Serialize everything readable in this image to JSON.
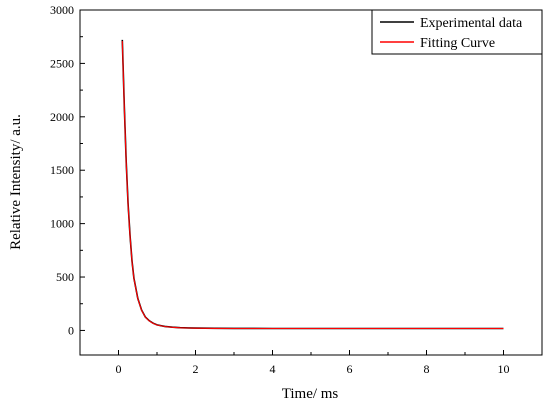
{
  "chart_data": {
    "type": "line",
    "xlabel": "Time/ ms",
    "ylabel": "Relative Intensity/ a.u.",
    "xlim": [
      -1,
      11
    ],
    "ylim": [
      -230,
      3000
    ],
    "x_ticks": [
      0,
      2,
      4,
      6,
      8,
      10
    ],
    "y_ticks": [
      0,
      500,
      1000,
      1500,
      2000,
      2500,
      3000
    ],
    "grid": false,
    "legend_position": "top-right",
    "series": [
      {
        "name": "Experimental data",
        "color": "#000000",
        "x": [
          0.1,
          0.15,
          0.2,
          0.25,
          0.3,
          0.35,
          0.4,
          0.5,
          0.6,
          0.7,
          0.8,
          0.9,
          1.0,
          1.2,
          1.4,
          1.6,
          1.8,
          2.0,
          2.5,
          3.0,
          3.5,
          4.0,
          4.5,
          5.0,
          5.5,
          6.0,
          6.5,
          7.0,
          7.5,
          8.0,
          8.5,
          9.0,
          9.5,
          10.0
        ],
        "y": [
          2720,
          2100,
          1580,
          1180,
          880,
          650,
          490,
          300,
          190,
          125,
          90,
          68,
          52,
          38,
          30,
          26,
          24,
          22,
          20,
          19,
          19,
          18,
          18,
          18,
          18,
          18,
          18,
          18,
          18,
          18,
          18,
          18,
          18,
          18
        ]
      },
      {
        "name": "Fitting Curve",
        "color": "#ff0000",
        "x": [
          0.1,
          0.15,
          0.2,
          0.25,
          0.3,
          0.35,
          0.4,
          0.5,
          0.6,
          0.7,
          0.8,
          0.9,
          1.0,
          1.2,
          1.4,
          1.6,
          1.8,
          2.0,
          2.5,
          3.0,
          3.5,
          4.0,
          4.5,
          5.0,
          5.5,
          6.0,
          6.5,
          7.0,
          7.5,
          8.0,
          8.5,
          9.0,
          9.5,
          10.0
        ],
        "y": [
          2710,
          2090,
          1570,
          1170,
          875,
          645,
          485,
          298,
          188,
          123,
          88,
          66,
          51,
          37,
          29,
          25,
          23,
          21,
          19,
          18,
          18,
          18,
          18,
          18,
          18,
          18,
          18,
          18,
          18,
          18,
          18,
          18,
          18,
          18
        ]
      }
    ]
  }
}
